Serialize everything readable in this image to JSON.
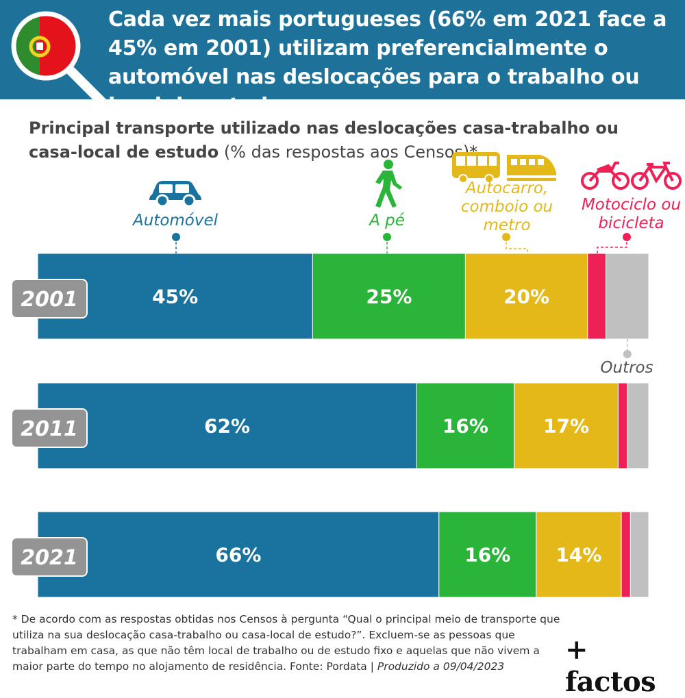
{
  "header": {
    "title": "Cada vez mais portugueses (66% em 2021 face a 45% em 2001) utilizam preferencialmente o automóvel nas deslocações para o trabalho ou local de estudo"
  },
  "subtitle": {
    "bold": "Principal transporte utilizado nas deslocações casa-trabalho ou casa-local de estudo",
    "normal": " (% das respostas aos Censos)*"
  },
  "categories": {
    "car": "Automóvel",
    "walk": "A pé",
    "transit": "Autocarro, comboio ou metro",
    "moto": "Motociclo ou bicicleta",
    "other": "Outros"
  },
  "colors": {
    "car": "#1a729f",
    "walk": "#2ab53a",
    "transit": "#e4b819",
    "moto": "#ee2157",
    "other": "#c0c0c0",
    "year_badge": "#949494"
  },
  "icons": [
    "car-icon",
    "walker-icon",
    "bus-icon",
    "train-icon",
    "motorcycle-icon",
    "bicycle-icon",
    "portugal-flag-icon",
    "magnifier-icon"
  ],
  "chart_data": {
    "type": "bar",
    "orientation": "horizontal-stacked-100",
    "categories": [
      "2001",
      "2011",
      "2021"
    ],
    "series": [
      {
        "name": "Automóvel",
        "values": [
          45,
          62,
          66
        ],
        "labels": [
          "45%",
          "62%",
          "66%"
        ]
      },
      {
        "name": "A pé",
        "values": [
          25,
          16,
          16
        ],
        "labels": [
          "25%",
          "16%",
          "16%"
        ]
      },
      {
        "name": "Autocarro, comboio ou metro",
        "values": [
          20,
          17,
          14
        ],
        "labels": [
          "20%",
          "17%",
          "14%"
        ]
      },
      {
        "name": "Motociclo ou bicicleta",
        "values": [
          3,
          1.5,
          1.5
        ],
        "labels": [
          "",
          "",
          ""
        ]
      },
      {
        "name": "Outros",
        "values": [
          7,
          3.5,
          3
        ],
        "labels": [
          "",
          "",
          ""
        ]
      }
    ]
  },
  "footnote": {
    "text": "* De acordo com as respostas obtidas nos Censos à pergunta “Qual o principal meio de transporte que utiliza na sua deslocação casa-trabalho ou casa-local de estudo?”. Excluem-se as pessoas que trabalham em casa, as que não têm local de trabalho ou de estudo fixo e aquelas que não vivem a maior parte do tempo no alojamento de residência. Fonte: Pordata | ",
    "produced": "Produzido a 09/04/2023"
  },
  "brand": "+ factos"
}
